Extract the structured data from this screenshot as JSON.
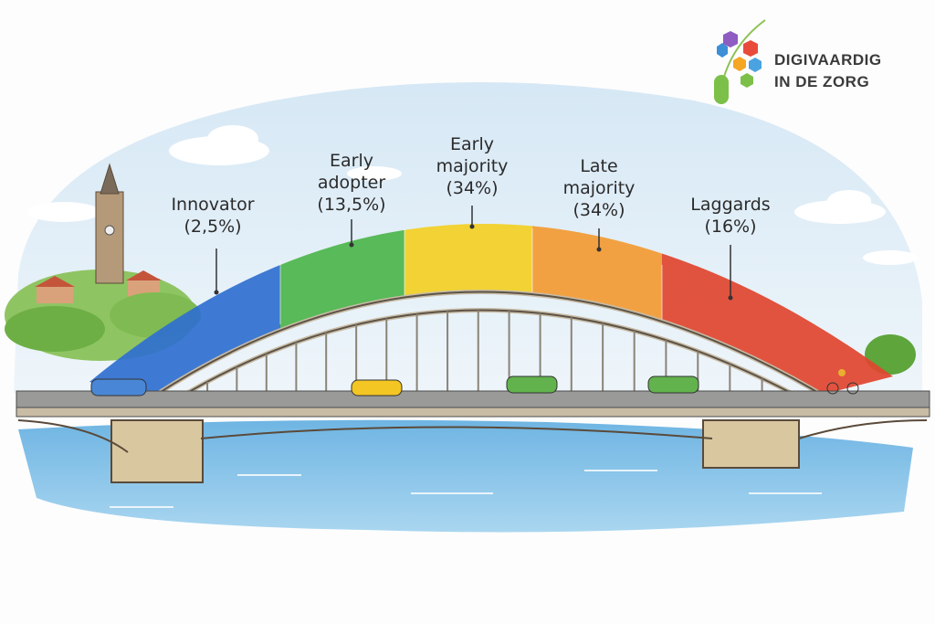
{
  "segments": [
    {
      "name": "Innovator",
      "percent": "(2,5%)",
      "color": "#2f6fd0"
    },
    {
      "name": "Early adopter",
      "percent": "(13,5%)",
      "color": "#4cb54a"
    },
    {
      "name": "Early majority",
      "percent": "(34%)",
      "color": "#f3d023"
    },
    {
      "name": "Late majority",
      "percent": "(34%)",
      "color": "#f39a32"
    },
    {
      "name": "Laggards",
      "percent": "(16%)",
      "color": "#e0452e"
    }
  ],
  "labels": {
    "innovator": [
      "Innovator",
      "(2,5%)"
    ],
    "early_adopter": [
      "Early",
      "adopter",
      "(13,5%)"
    ],
    "early_majority": [
      "Early",
      "majority",
      "(34%)"
    ],
    "late_majority": [
      "Late",
      "majority",
      "(34%)"
    ],
    "laggards": [
      "Laggards",
      "(16%)"
    ]
  },
  "logo": {
    "line1": "DIGIVAARDIG",
    "line2": "IN DE ZORG"
  }
}
